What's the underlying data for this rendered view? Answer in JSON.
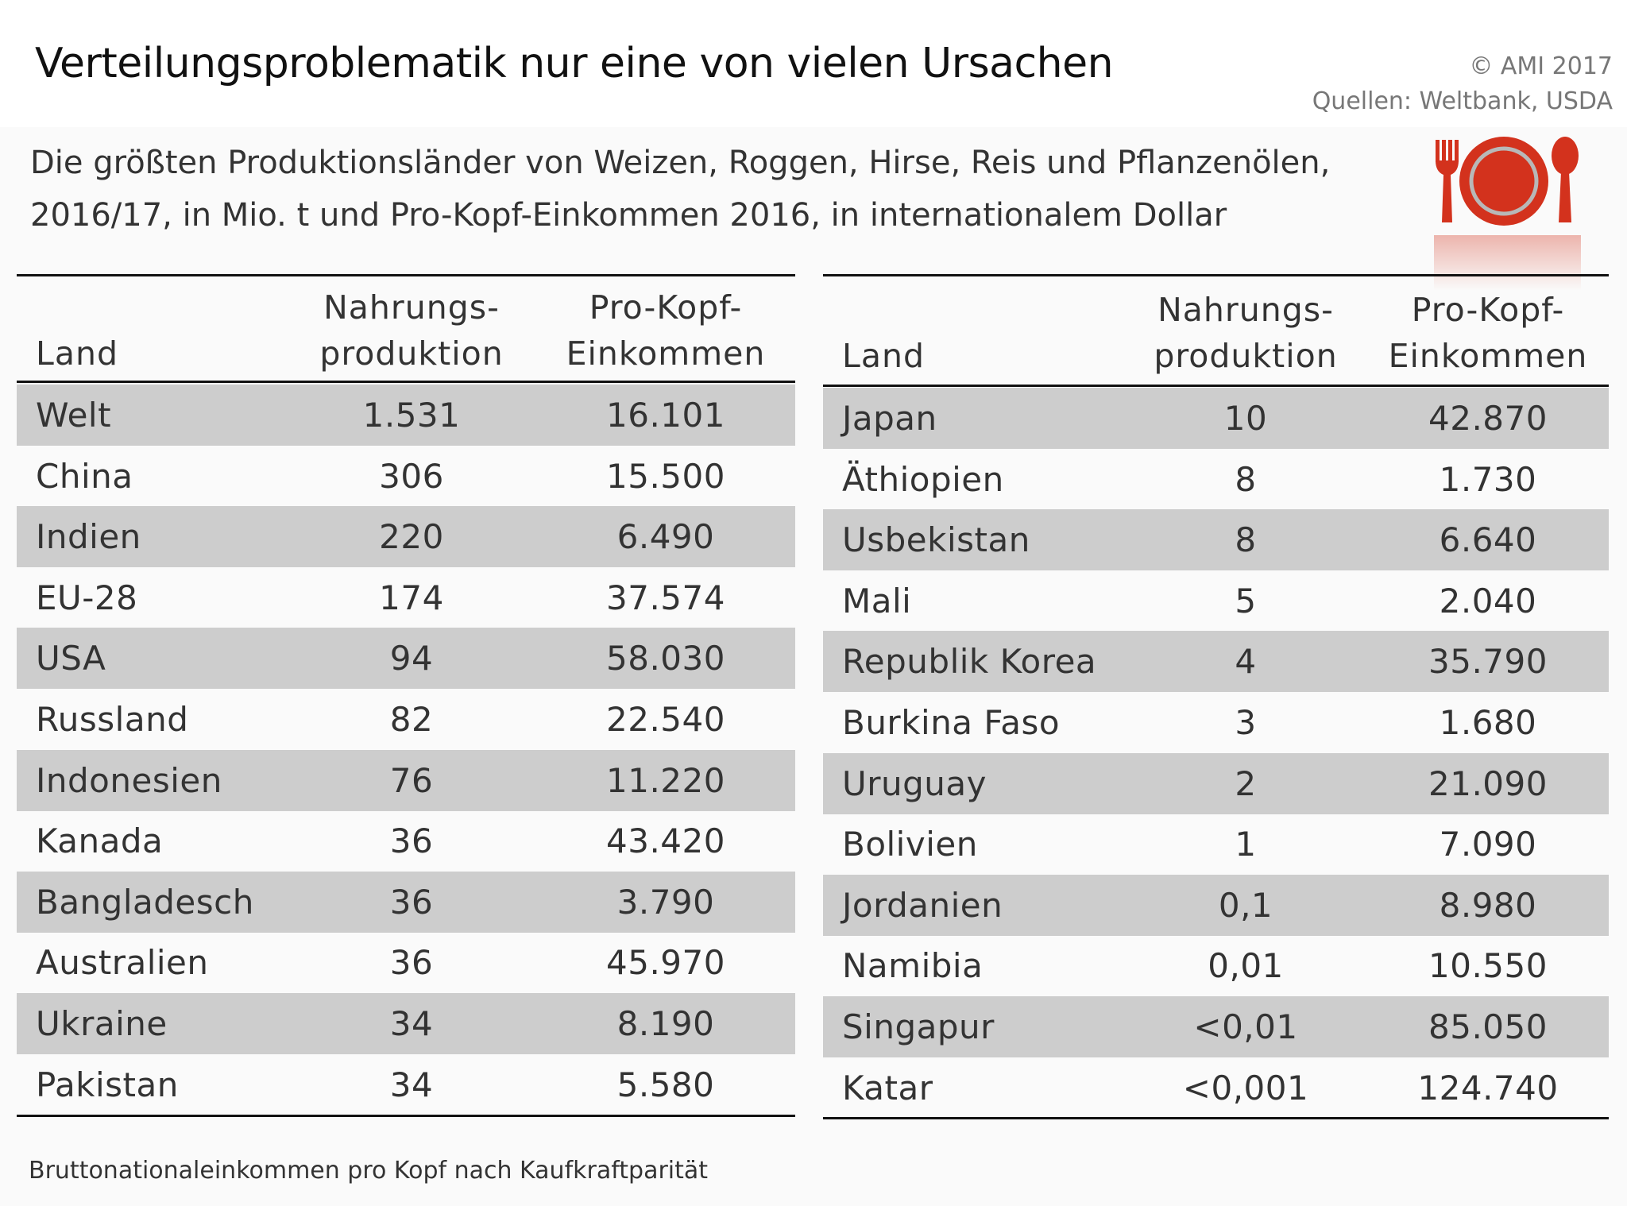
{
  "title": "Verteilungsproblematik nur eine von vielen Ursachen",
  "copyright": "© AMI 2017",
  "sources": "Quellen: Weltbank, USDA",
  "subtitle_line1": "Die größten Produktionsländer von Weizen, Roggen, Hirse, Reis und Pflanzenölen,",
  "subtitle_line2": "2016/17, in Mio. t und Pro-Kopf-Einkommen 2016, in internationalem Dollar",
  "icon": "plate-fork-spoon-icon",
  "colors": {
    "icon_red": "#d3321d",
    "row_shade": "#cdcdcd"
  },
  "headers": {
    "land": "Land",
    "prod_1": "Nahrungs-",
    "prod_2": "produktion",
    "inc_1": "Pro-Kopf-",
    "inc_2": "Einkommen"
  },
  "left_rows": [
    {
      "land": "Welt",
      "prod": "1.531",
      "inc": "16.101"
    },
    {
      "land": "China",
      "prod": "306",
      "inc": "15.500"
    },
    {
      "land": "Indien",
      "prod": "220",
      "inc": "6.490"
    },
    {
      "land": "EU-28",
      "prod": "174",
      "inc": "37.574"
    },
    {
      "land": "USA",
      "prod": "94",
      "inc": "58.030"
    },
    {
      "land": "Russland",
      "prod": "82",
      "inc": "22.540"
    },
    {
      "land": "Indonesien",
      "prod": "76",
      "inc": "11.220"
    },
    {
      "land": "Kanada",
      "prod": "36",
      "inc": "43.420"
    },
    {
      "land": "Bangladesch",
      "prod": "36",
      "inc": "3.790"
    },
    {
      "land": "Australien",
      "prod": "36",
      "inc": "45.970"
    },
    {
      "land": "Ukraine",
      "prod": "34",
      "inc": "8.190"
    },
    {
      "land": "Pakistan",
      "prod": "34",
      "inc": "5.580"
    }
  ],
  "right_rows": [
    {
      "land": "Japan",
      "prod": "10",
      "inc": "42.870"
    },
    {
      "land": "Äthiopien",
      "prod": "8",
      "inc": "1.730"
    },
    {
      "land": "Usbekistan",
      "prod": "8",
      "inc": "6.640"
    },
    {
      "land": "Mali",
      "prod": "5",
      "inc": "2.040"
    },
    {
      "land": "Republik Korea",
      "prod": "4",
      "inc": "35.790"
    },
    {
      "land": "Burkina Faso",
      "prod": "3",
      "inc": "1.680"
    },
    {
      "land": "Uruguay",
      "prod": "2",
      "inc": "21.090"
    },
    {
      "land": "Bolivien",
      "prod": "1",
      "inc": "7.090"
    },
    {
      "land": "Jordanien",
      "prod": "0,1",
      "inc": "8.980"
    },
    {
      "land": "Namibia",
      "prod": "0,01",
      "inc": "10.550"
    },
    {
      "land": "Singapur",
      "prod": "<0,01",
      "inc": "85.050"
    },
    {
      "land": "Katar",
      "prod": "<0,001",
      "inc": "124.740"
    }
  ],
  "footnote": "Bruttonationaleinkommen pro Kopf nach Kaufkraftparität"
}
